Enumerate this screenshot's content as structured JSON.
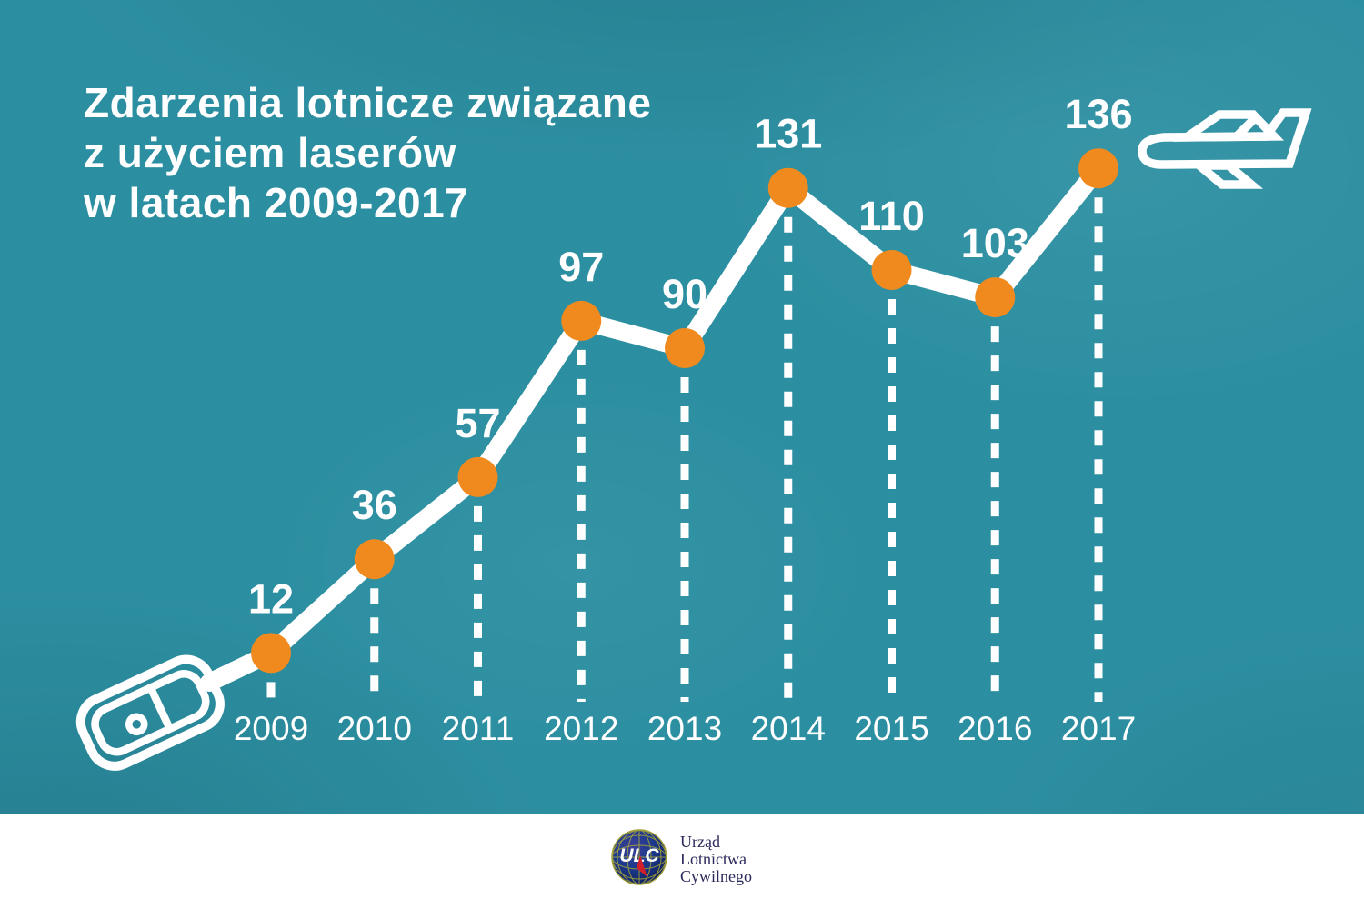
{
  "header": {
    "title_lines": [
      "Zdarzenia lotnicze związane",
      "z użyciem laserów",
      "w latach 2009-2017"
    ]
  },
  "chart_data": {
    "type": "line",
    "title": "Zdarzenia lotnicze związane z użyciem laserów w latach 2009-2017",
    "categories": [
      "2009",
      "2010",
      "2011",
      "2012",
      "2013",
      "2014",
      "2015",
      "2016",
      "2017"
    ],
    "values": [
      12,
      36,
      57,
      97,
      90,
      131,
      110,
      103,
      136
    ],
    "xlabel": "",
    "ylabel": "",
    "ylim": [
      0,
      160
    ],
    "grid": false,
    "legend": false,
    "point_labels_shown": true,
    "line_color": "#ffffff",
    "point_color": "#f18a1e",
    "label_color": "#ffffff",
    "drop_lines": "dashed white vertical lines from each point to the year axis"
  },
  "icons": {
    "start_icon": "laser-pointer",
    "end_icon": "airplane",
    "footer_icon": "ulc-globe-logo"
  },
  "footer": {
    "logo_monogram": "ULC",
    "org_lines": [
      "Urząd",
      "Lotnictwa",
      "Cywilnego"
    ]
  },
  "colors": {
    "background": "#2c8fa1",
    "accent_orange": "#f18a1e",
    "chart_white": "#ffffff",
    "footer_background": "#ffffff",
    "footer_text": "#2b2a5a",
    "logo_blue": "#1c3a8e",
    "logo_red": "#d1202a",
    "logo_grid": "#a3a13b"
  }
}
